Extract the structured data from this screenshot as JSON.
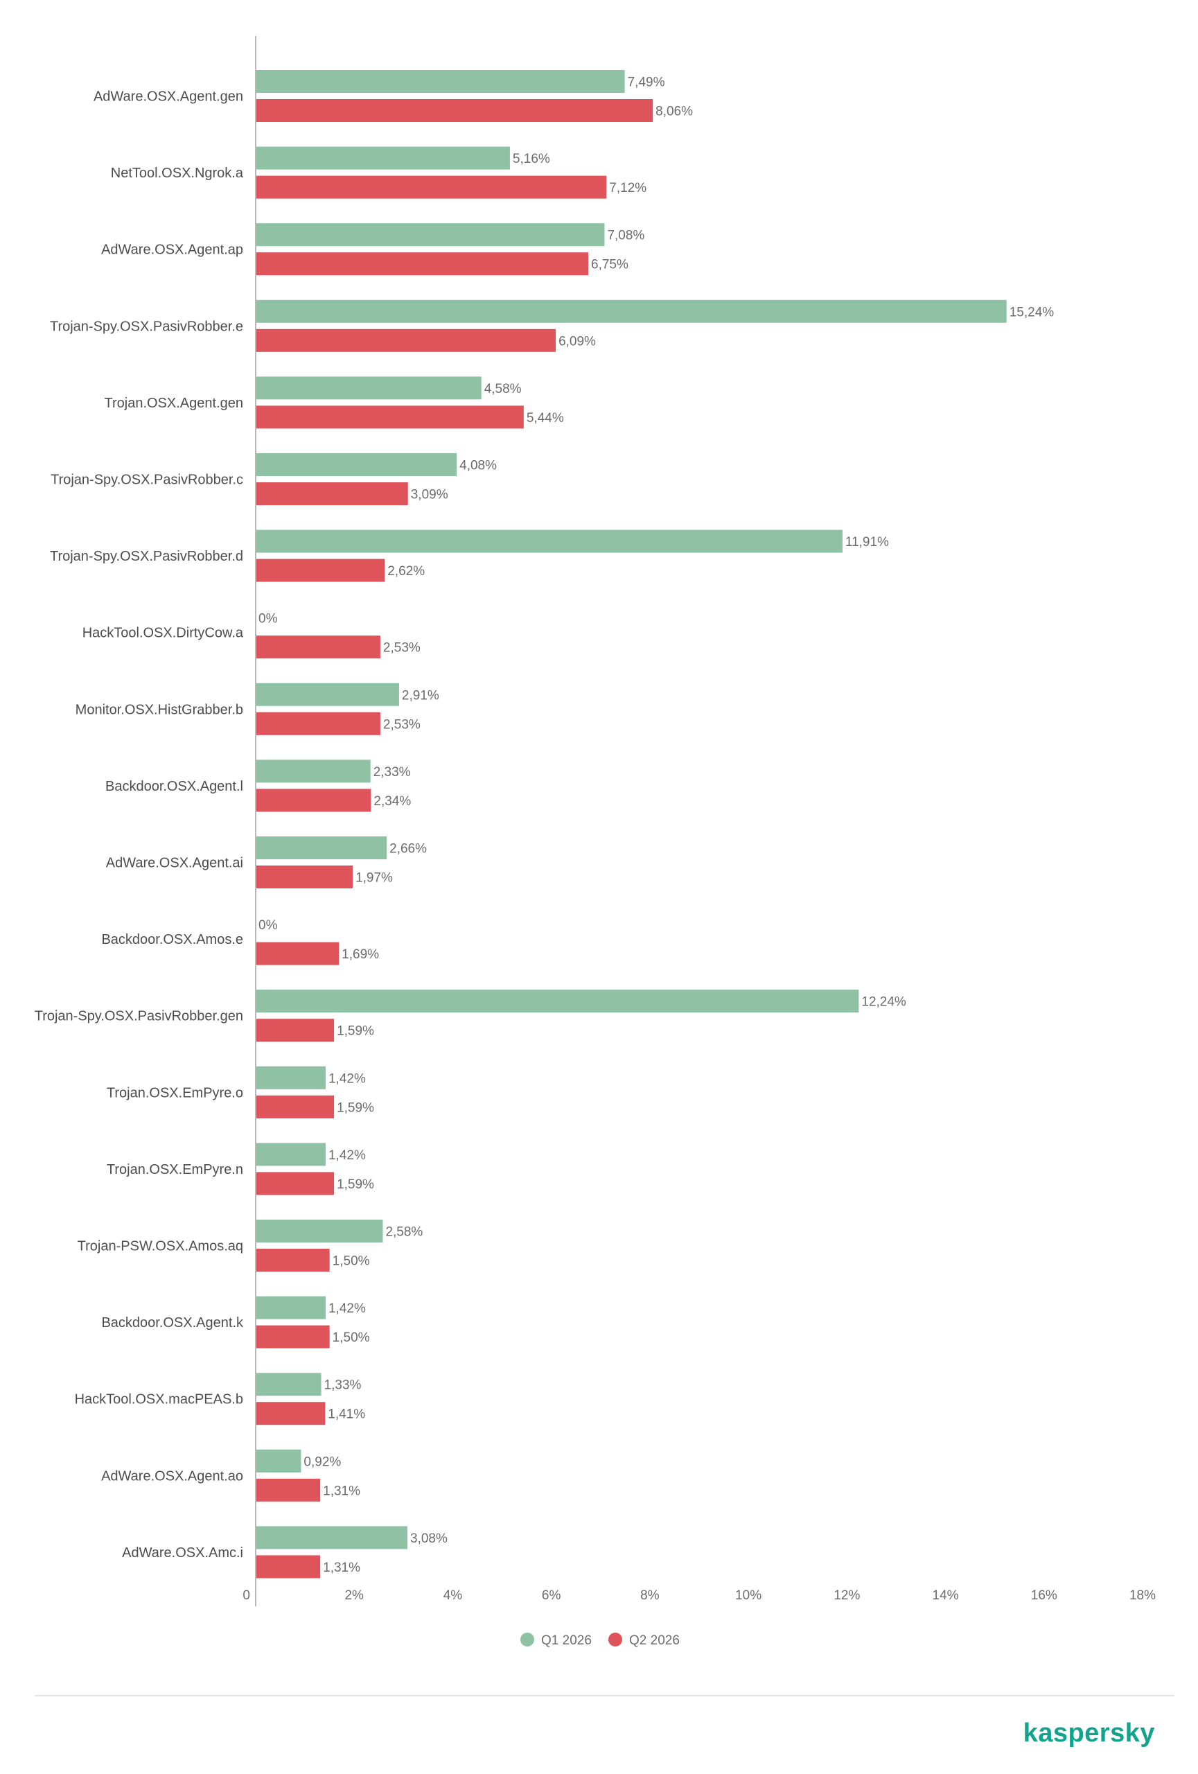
{
  "brand": {
    "logo_text": "kaspersky",
    "logo_color": "#11a38b"
  },
  "colors": {
    "q1": "#8fc2a5",
    "q2": "#de545a",
    "axis": "#b8b8b8",
    "divider": "#e2e2e2"
  },
  "chart_data": {
    "type": "bar",
    "orientation": "horizontal",
    "categories": [
      "AdWare.OSX.Agent.gen",
      "NetTool.OSX.Ngrok.a",
      "AdWare.OSX.Agent.ap",
      "Trojan-Spy.OSX.PasivRobber.e",
      "Trojan.OSX.Agent.gen",
      "Trojan-Spy.OSX.PasivRobber.c",
      "Trojan-Spy.OSX.PasivRobber.d",
      "HackTool.OSX.DirtyCow.a",
      "Monitor.OSX.HistGrabber.b",
      "Backdoor.OSX.Agent.l",
      "AdWare.OSX.Agent.ai",
      "Backdoor.OSX.Amos.e",
      "Trojan-Spy.OSX.PasivRobber.gen",
      "Trojan.OSX.EmPyre.o",
      "Trojan.OSX.EmPyre.n",
      "Trojan-PSW.OSX.Amos.aq",
      "Backdoor.OSX.Agent.k",
      "HackTool.OSX.macPEAS.b",
      "AdWare.OSX.Agent.ao",
      "AdWare.OSX.Amc.i"
    ],
    "series": [
      {
        "name": "Q1 2026",
        "color": "#8fc2a5",
        "values": [
          7.49,
          5.16,
          7.08,
          15.24,
          4.58,
          4.08,
          11.91,
          0,
          2.91,
          2.33,
          2.66,
          0,
          12.24,
          1.42,
          1.42,
          2.58,
          1.42,
          1.33,
          0.92,
          3.08
        ],
        "value_labels": [
          "7,49%",
          "5,16%",
          "7,08%",
          "15,24%",
          "4,58%",
          "4,08%",
          "11,91%",
          "0%",
          "2,91%",
          "2,33%",
          "2,66%",
          "0%",
          "12,24%",
          "1,42%",
          "1,42%",
          "2,58%",
          "1,42%",
          "1,33%",
          "0,92%",
          "3,08%"
        ]
      },
      {
        "name": "Q2 2026",
        "color": "#de545a",
        "values": [
          8.06,
          7.12,
          6.75,
          6.09,
          5.44,
          3.09,
          2.62,
          2.53,
          2.53,
          2.34,
          1.97,
          1.69,
          1.59,
          1.59,
          1.59,
          1.5,
          1.5,
          1.41,
          1.31,
          1.31
        ],
        "value_labels": [
          "8,06%",
          "7,12%",
          "6,75%",
          "6,09%",
          "5,44%",
          "3,09%",
          "2,62%",
          "2,53%",
          "2,53%",
          "2,34%",
          "1,97%",
          "1,69%",
          "1,59%",
          "1,59%",
          "1,59%",
          "1,50%",
          "1,50%",
          "1,41%",
          "1,31%",
          "1,31%"
        ]
      }
    ],
    "x_ticks": [
      0,
      2,
      4,
      6,
      8,
      10,
      12,
      14,
      16,
      18
    ],
    "x_tick_labels": [
      "0",
      "2%",
      "4%",
      "6%",
      "8%",
      "10%",
      "12%",
      "14%",
      "16%",
      "18%"
    ],
    "xlim": [
      0,
      18
    ],
    "grid": false,
    "legend_position": "bottom-center",
    "title": "",
    "xlabel": "",
    "ylabel": ""
  }
}
